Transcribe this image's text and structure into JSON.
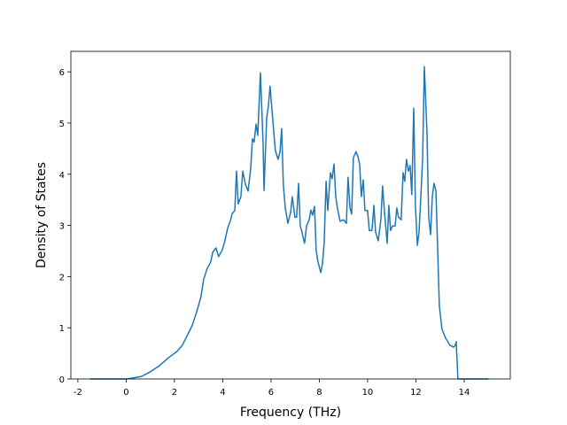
{
  "chart_data": {
    "type": "line",
    "x_label": "Frequency (THz)",
    "y_label": "Density of States",
    "xlim": [
      -2.29,
      15.91
    ],
    "ylim": [
      0,
      6.4
    ],
    "xticks": [
      -2,
      0,
      2,
      4,
      6,
      8,
      10,
      12,
      14
    ],
    "yticks": [
      0,
      1,
      2,
      3,
      4,
      5,
      6
    ],
    "series": [
      {
        "color": "#1f77b4",
        "x": [
          -1.5,
          0,
          0.28,
          0.64,
          1.0,
          1.38,
          1.74,
          2.11,
          2.33,
          2.51,
          2.73,
          2.92,
          3.1,
          3.21,
          3.36,
          3.5,
          3.58,
          3.72,
          3.83,
          3.98,
          4.09,
          4.2,
          4.31,
          4.39,
          4.5,
          4.57,
          4.64,
          4.75,
          4.83,
          4.94,
          5.05,
          5.16,
          5.23,
          5.3,
          5.38,
          5.45,
          5.56,
          5.67,
          5.71,
          5.82,
          5.89,
          5.96,
          6.07,
          6.18,
          6.29,
          6.37,
          6.44,
          6.51,
          6.59,
          6.7,
          6.81,
          6.88,
          6.99,
          7.06,
          7.14,
          7.21,
          7.28,
          7.39,
          7.47,
          7.58,
          7.65,
          7.72,
          7.8,
          7.87,
          7.94,
          8.06,
          8.13,
          8.2,
          8.28,
          8.35,
          8.46,
          8.53,
          8.61,
          8.68,
          8.75,
          8.86,
          9.0,
          9.12,
          9.19,
          9.27,
          9.34,
          9.41,
          9.52,
          9.6,
          9.67,
          9.74,
          9.82,
          9.89,
          10.0,
          10.07,
          10.18,
          10.26,
          10.33,
          10.44,
          10.55,
          10.62,
          10.7,
          10.81,
          10.88,
          10.95,
          11.03,
          11.14,
          11.21,
          11.28,
          11.39,
          11.47,
          11.54,
          11.61,
          11.69,
          11.76,
          11.83,
          11.91,
          11.98,
          12.06,
          12.13,
          12.2,
          12.28,
          12.35,
          12.46,
          12.53,
          12.61,
          12.68,
          12.75,
          12.83,
          12.9,
          12.97,
          13.08,
          13.23,
          13.41,
          13.56,
          13.63,
          13.67,
          13.74,
          15.0
        ],
        "values": [
          0,
          0,
          0.02,
          0.05,
          0.14,
          0.26,
          0.41,
          0.54,
          0.66,
          0.83,
          1.04,
          1.31,
          1.61,
          1.95,
          2.16,
          2.28,
          2.47,
          2.56,
          2.39,
          2.52,
          2.7,
          2.94,
          3.08,
          3.23,
          3.29,
          4.06,
          3.42,
          3.56,
          4.06,
          3.8,
          3.67,
          4.12,
          4.69,
          4.63,
          4.98,
          4.76,
          5.98,
          4.63,
          3.68,
          5.1,
          5.33,
          5.72,
          5.07,
          4.46,
          4.29,
          4.43,
          4.89,
          3.8,
          3.34,
          3.04,
          3.25,
          3.56,
          3.16,
          3.16,
          3.82,
          2.99,
          2.87,
          2.65,
          2.99,
          3.11,
          3.3,
          3.2,
          3.37,
          2.51,
          2.3,
          2.08,
          2.25,
          2.65,
          3.86,
          3.29,
          4.03,
          3.91,
          4.2,
          3.56,
          3.34,
          3.08,
          3.11,
          3.04,
          3.94,
          3.34,
          3.22,
          4.32,
          4.44,
          4.34,
          4.2,
          3.56,
          3.89,
          3.29,
          3.29,
          2.9,
          2.9,
          3.39,
          2.87,
          2.7,
          3.11,
          3.77,
          3.25,
          2.65,
          3.39,
          2.9,
          2.99,
          2.99,
          3.34,
          3.16,
          3.11,
          4.03,
          3.86,
          4.29,
          4.06,
          4.17,
          3.6,
          5.29,
          3.39,
          2.61,
          2.87,
          3.51,
          4.32,
          6.1,
          4.81,
          3.16,
          2.82,
          3.56,
          3.82,
          3.68,
          2.56,
          1.44,
          0.97,
          0.8,
          0.66,
          0.62,
          0.66,
          0.73,
          0,
          0
        ]
      }
    ]
  }
}
